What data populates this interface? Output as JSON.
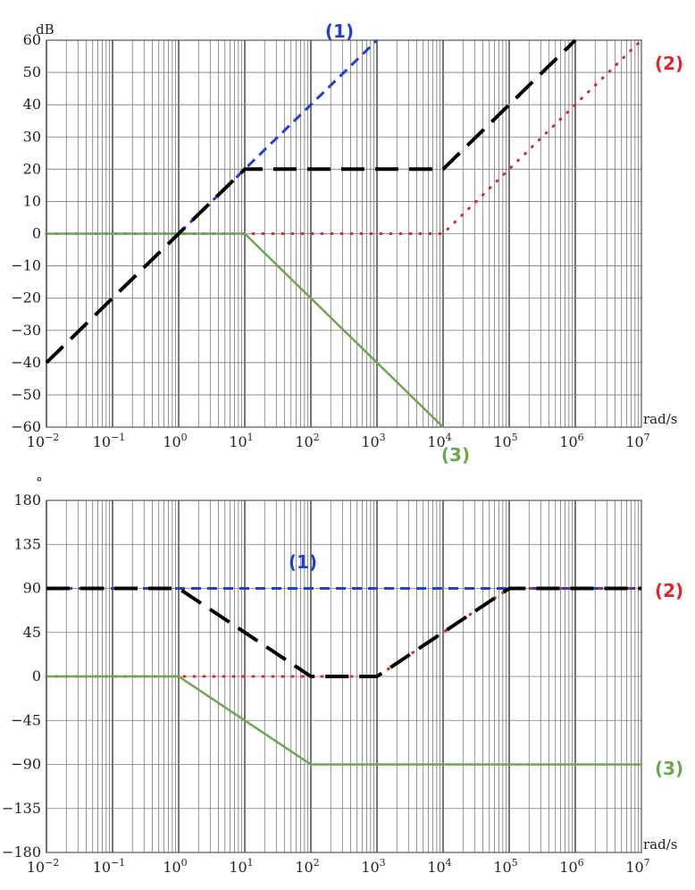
{
  "chart_data": [
    {
      "type": "line",
      "title": "",
      "ylabel": "dB",
      "xlabel": "rad/s",
      "x_scale": "log",
      "xlim": [
        0.01,
        10000000
      ],
      "ylim": [
        -60,
        60
      ],
      "x_ticks": [
        {
          "base": "10",
          "exp": "−2"
        },
        {
          "base": "10",
          "exp": "−1"
        },
        {
          "base": "10",
          "exp": "0"
        },
        {
          "base": "10",
          "exp": "1"
        },
        {
          "base": "10",
          "exp": "2"
        },
        {
          "base": "10",
          "exp": "3"
        },
        {
          "base": "10",
          "exp": "4"
        },
        {
          "base": "10",
          "exp": "5"
        },
        {
          "base": "10",
          "exp": "6"
        },
        {
          "base": "10",
          "exp": "7"
        }
      ],
      "y_ticks": [
        "60",
        "50",
        "40",
        "30",
        "20",
        "10",
        "0",
        "−10",
        "−20",
        "−30",
        "−40",
        "−50",
        "−60"
      ],
      "grid": true,
      "series": [
        {
          "name": "(1)",
          "color": "#1f3fd6",
          "style": "dashed",
          "points": [
            [
              1,
              0
            ],
            [
              1000,
              60
            ]
          ]
        },
        {
          "name": "(2)",
          "color": "#e0262b",
          "style": "dotted",
          "points": [
            [
              0.01,
              0
            ],
            [
              10000,
              0
            ],
            [
              10000000,
              60
            ]
          ]
        },
        {
          "name": "(3)",
          "color": "#6aa84f",
          "style": "solid",
          "points": [
            [
              0.01,
              0
            ],
            [
              10,
              0
            ],
            [
              10000,
              -60
            ]
          ]
        },
        {
          "name": "",
          "color": "#000000",
          "style": "longdash",
          "points": [
            [
              0.01,
              -40
            ],
            [
              10,
              20
            ],
            [
              10000,
              20
            ],
            [
              1000000,
              60
            ]
          ]
        }
      ]
    },
    {
      "type": "line",
      "title": "",
      "ylabel": "°",
      "xlabel": "rad/s",
      "x_scale": "log",
      "xlim": [
        0.01,
        10000000
      ],
      "ylim": [
        -180,
        180
      ],
      "x_ticks": [
        {
          "base": "10",
          "exp": "−2"
        },
        {
          "base": "10",
          "exp": "−1"
        },
        {
          "base": "10",
          "exp": "0"
        },
        {
          "base": "10",
          "exp": "1"
        },
        {
          "base": "10",
          "exp": "2"
        },
        {
          "base": "10",
          "exp": "3"
        },
        {
          "base": "10",
          "exp": "4"
        },
        {
          "base": "10",
          "exp": "5"
        },
        {
          "base": "10",
          "exp": "6"
        },
        {
          "base": "10",
          "exp": "7"
        }
      ],
      "y_ticks": [
        "180",
        "135",
        "90",
        "45",
        "0",
        "−45",
        "−90",
        "−135",
        "−180"
      ],
      "grid": true,
      "series": [
        {
          "name": "(1)",
          "color": "#1f3fd6",
          "style": "dashed",
          "points": [
            [
              0.01,
              90
            ],
            [
              10000000,
              90
            ]
          ]
        },
        {
          "name": "(2)",
          "color": "#e0262b",
          "style": "dotted",
          "points": [
            [
              0.01,
              0
            ],
            [
              1000,
              0
            ],
            [
              100000,
              90
            ],
            [
              10000000,
              90
            ]
          ]
        },
        {
          "name": "(3)",
          "color": "#6aa84f",
          "style": "solid",
          "points": [
            [
              0.01,
              0
            ],
            [
              1,
              0
            ],
            [
              100,
              -90
            ],
            [
              10000000,
              -90
            ]
          ]
        },
        {
          "name": "",
          "color": "#000000",
          "style": "longdash",
          "points": [
            [
              0.01,
              90
            ],
            [
              1,
              90
            ],
            [
              100,
              0
            ],
            [
              1000,
              0
            ],
            [
              100000,
              90
            ],
            [
              10000000,
              90
            ]
          ]
        }
      ]
    }
  ]
}
